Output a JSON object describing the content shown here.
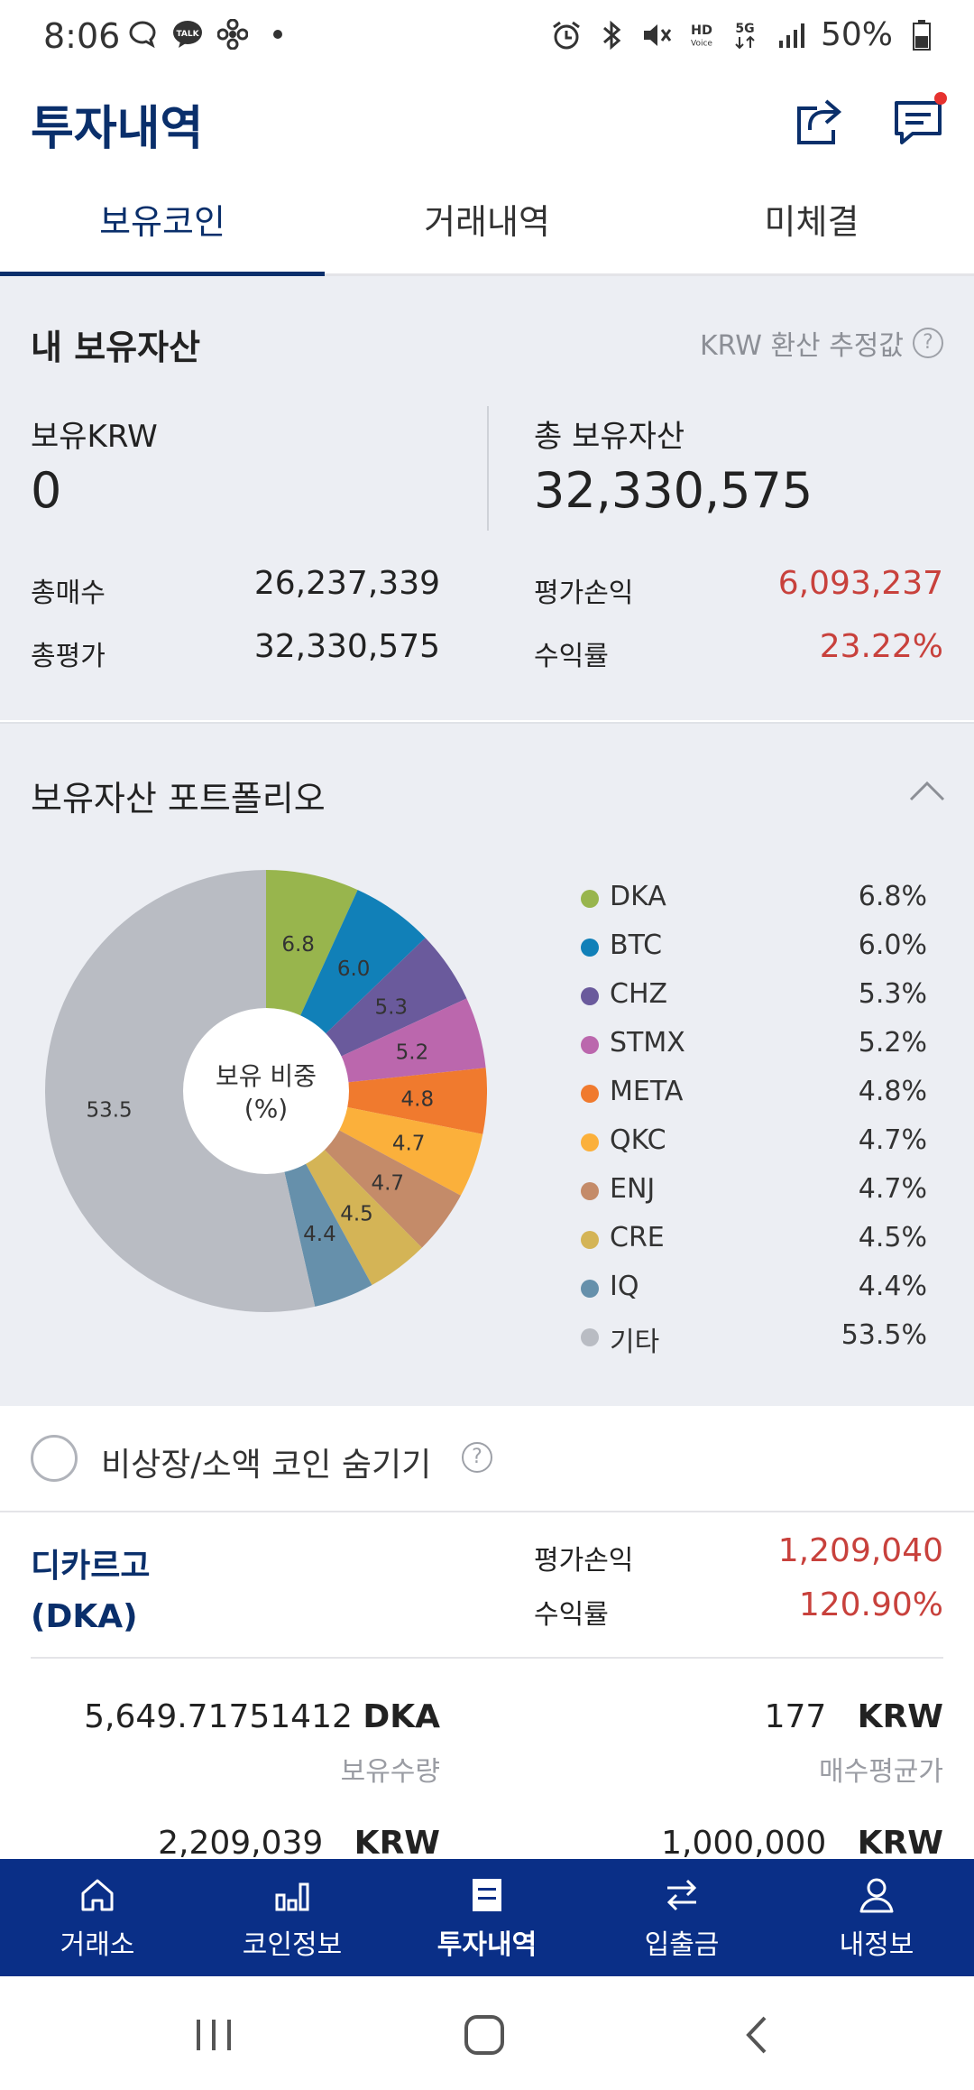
{
  "status_bar": {
    "time": "8:06",
    "battery": "50%",
    "net_label": "5G",
    "hd_label": "HD",
    "voice_label": "Voice",
    "talk_label": "TALK"
  },
  "header": {
    "title": "투자내역"
  },
  "tabs": [
    {
      "label": "보유코인",
      "active": true
    },
    {
      "label": "거래내역",
      "active": false
    },
    {
      "label": "미체결",
      "active": false
    }
  ],
  "assets": {
    "title": "내 보유자산",
    "krw_estimate": "KRW 환산 추정값",
    "help_glyph": "?",
    "held_krw_label": "보유KRW",
    "held_krw_value": "0",
    "total_label": "총 보유자산",
    "total_value": "32,330,575",
    "total_buy_label": "총매수",
    "total_buy_value": "26,237,339",
    "total_eval_label": "총평가",
    "total_eval_value": "32,330,575",
    "pl_label": "평가손익",
    "pl_value": "6,093,237",
    "return_label": "수익률",
    "return_value": "23.22%"
  },
  "portfolio": {
    "title": "보유자산 포트폴리오",
    "center_label_1": "보유 비중",
    "center_label_2": "(%)",
    "chart_data": {
      "type": "pie",
      "categories": [
        "DKA",
        "BTC",
        "CHZ",
        "STMX",
        "META",
        "QKC",
        "ENJ",
        "CRE",
        "IQ",
        "기타"
      ],
      "values": [
        6.8,
        6.0,
        5.3,
        5.2,
        4.8,
        4.7,
        4.7,
        4.5,
        4.4,
        53.5
      ],
      "slice_labels": [
        "6.8",
        "6.0",
        "5.3",
        "5.2",
        "4.8",
        "4.7",
        "4.7",
        "4.5",
        "4.4",
        "53.5"
      ],
      "legend_pcts": [
        "6.8%",
        "6.0%",
        "5.3%",
        "5.2%",
        "4.8%",
        "4.7%",
        "4.7%",
        "4.5%",
        "4.4%",
        "53.5%"
      ],
      "colors": [
        "#98b54d",
        "#1180b8",
        "#6a5a9c",
        "#bb67ad",
        "#f07a2e",
        "#fbb03b",
        "#c48b69",
        "#d4b456",
        "#6690ab",
        "#b9bcc3"
      ],
      "donut": true,
      "legend": "right"
    }
  },
  "hide_coins": {
    "label": "비상장/소액 코인 숨기기",
    "help_glyph": "?"
  },
  "coin": {
    "name_line1": "디카르고",
    "name_line2": "(DKA)",
    "pl_label": "평가손익",
    "pl_value": "1,209,040",
    "return_label": "수익률",
    "return_value": "120.90%",
    "qty_value": "5,649.71751412",
    "qty_unit": "DKA",
    "qty_label": "보유수량",
    "avg_value": "177",
    "avg_unit": "KRW",
    "avg_label": "매수평균가",
    "eval_value": "2,209,039",
    "eval_unit": "KRW",
    "buy_value": "1,000,000",
    "buy_unit": "KRW"
  },
  "bottom_nav": [
    {
      "label": "거래소",
      "icon": "home-icon"
    },
    {
      "label": "코인정보",
      "icon": "bar-chart-icon"
    },
    {
      "label": "투자내역",
      "icon": "document-icon",
      "active": true
    },
    {
      "label": "입출금",
      "icon": "transfer-icon"
    },
    {
      "label": "내정보",
      "icon": "user-icon"
    }
  ]
}
